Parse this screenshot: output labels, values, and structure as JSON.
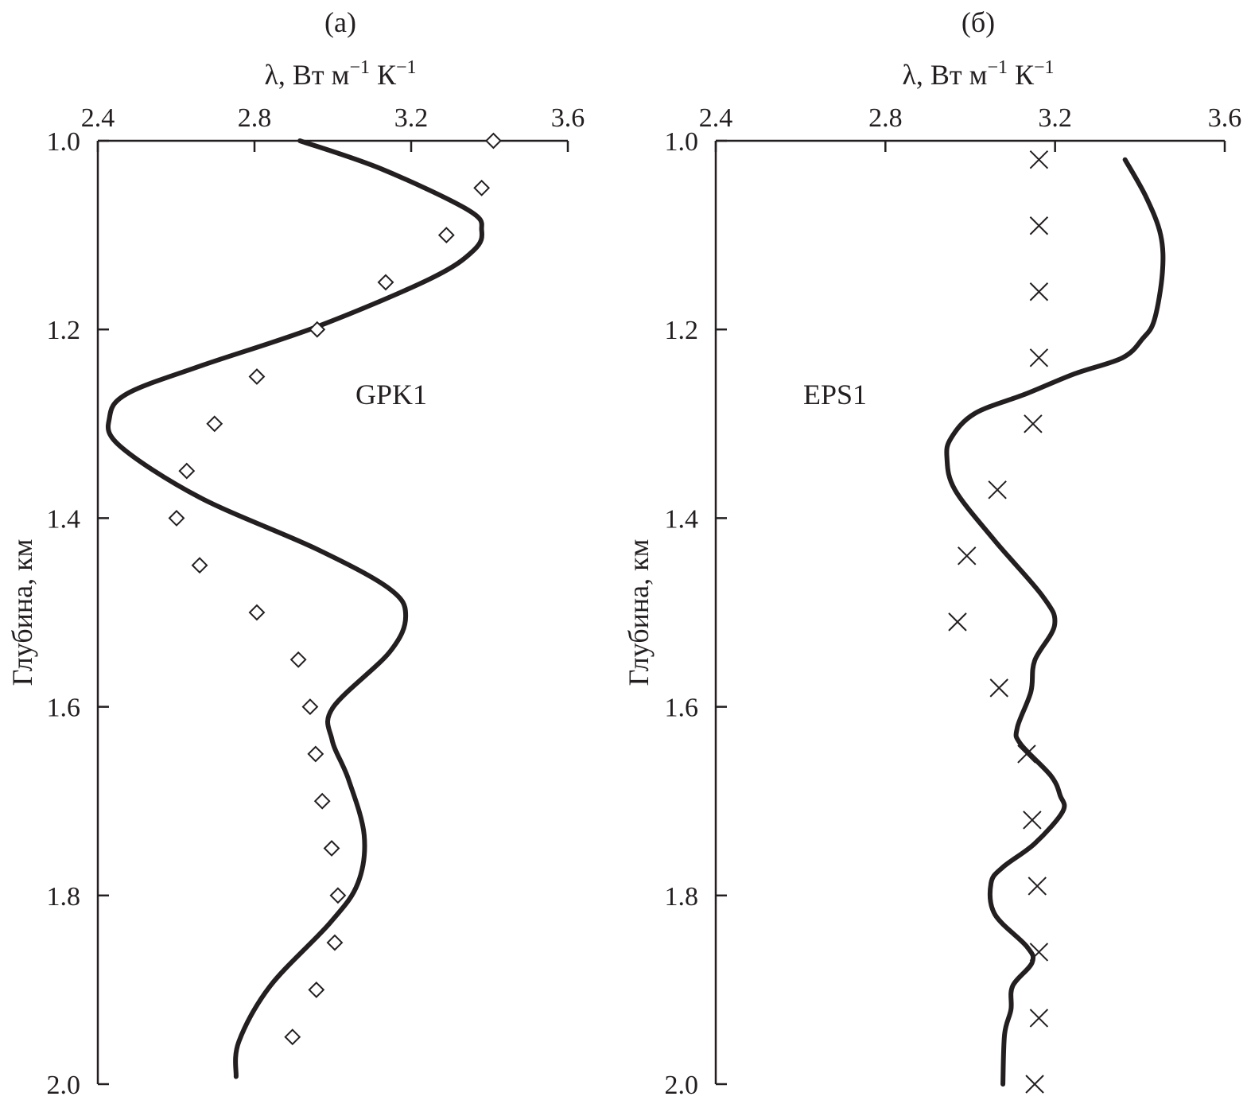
{
  "chart_data": [
    {
      "type": "line",
      "panel_label": "(a)",
      "xlabel": "λ, Вт м⁻¹ К⁻¹",
      "xlabel_parts": {
        "main": "λ, Вт м",
        "sup1": "−1",
        "mid": " К",
        "sup2": "−1"
      },
      "ylabel": "Глубина, км",
      "xlim": [
        2.4,
        3.6
      ],
      "ylim": [
        1.0,
        2.0
      ],
      "y_inverted": true,
      "x_axis_position": "top",
      "xticks": [
        "2.4",
        "2.8",
        "3.2",
        "3.6"
      ],
      "yticks": [
        "1.0",
        "1.2",
        "1.4",
        "1.6",
        "1.8",
        "2.0"
      ],
      "grid": false,
      "annotation": "GPK1",
      "color": "#231f20",
      "series": [
        {
          "style": "solid-line",
          "points": [
            [
              2.916,
              1.0
            ],
            [
              3.125,
              1.03
            ],
            [
              3.348,
              1.074
            ],
            [
              3.38,
              1.095
            ],
            [
              3.36,
              1.116
            ],
            [
              3.25,
              1.146
            ],
            [
              2.96,
              1.197
            ],
            [
              2.66,
              1.239
            ],
            [
              2.475,
              1.268
            ],
            [
              2.43,
              1.293
            ],
            [
              2.455,
              1.323
            ],
            [
              2.66,
              1.378
            ],
            [
              2.96,
              1.433
            ],
            [
              3.145,
              1.475
            ],
            [
              3.186,
              1.504
            ],
            [
              3.145,
              1.542
            ],
            [
              3.0,
              1.601
            ],
            [
              2.998,
              1.635
            ],
            [
              3.04,
              1.677
            ],
            [
              3.08,
              1.736
            ],
            [
              3.064,
              1.787
            ],
            [
              2.993,
              1.829
            ],
            [
              2.84,
              1.896
            ],
            [
              2.76,
              1.955
            ],
            [
              2.753,
              1.992
            ]
          ]
        },
        {
          "style": "diamond-markers",
          "points": [
            [
              3.41,
              1.0
            ],
            [
              3.38,
              1.05
            ],
            [
              3.29,
              1.1
            ],
            [
              3.135,
              1.15
            ],
            [
              2.96,
              1.2
            ],
            [
              2.806,
              1.25
            ],
            [
              2.698,
              1.3
            ],
            [
              2.627,
              1.35
            ],
            [
              2.601,
              1.4
            ],
            [
              2.66,
              1.45
            ],
            [
              2.806,
              1.5
            ],
            [
              2.912,
              1.55
            ],
            [
              2.942,
              1.6
            ],
            [
              2.956,
              1.65
            ],
            [
              2.973,
              1.7
            ],
            [
              2.997,
              1.75
            ],
            [
              3.013,
              1.8
            ],
            [
              3.005,
              1.85
            ],
            [
              2.958,
              1.9
            ],
            [
              2.897,
              1.95
            ]
          ]
        }
      ]
    },
    {
      "type": "line",
      "panel_label": "(б)",
      "xlabel": "λ, Вт м⁻¹ К⁻¹",
      "xlabel_parts": {
        "main": "λ, Вт м",
        "sup1": "−1",
        "mid": " К",
        "sup2": "−1"
      },
      "ylabel": "Глубина, км",
      "xlim": [
        2.4,
        3.6
      ],
      "ylim": [
        1.0,
        2.0
      ],
      "y_inverted": true,
      "x_axis_position": "top",
      "xticks": [
        "2.4",
        "2.8",
        "3.2",
        "3.6"
      ],
      "yticks": [
        "1.0",
        "1.2",
        "1.4",
        "1.6",
        "1.8",
        "2.0"
      ],
      "grid": false,
      "annotation": "EPS1",
      "color": "#231f20",
      "series": [
        {
          "style": "solid-line",
          "points": [
            [
              3.365,
              1.02
            ],
            [
              3.415,
              1.06
            ],
            [
              3.449,
              1.1
            ],
            [
              3.453,
              1.14
            ],
            [
              3.434,
              1.19
            ],
            [
              3.406,
              1.21
            ],
            [
              3.359,
              1.23
            ],
            [
              3.246,
              1.247
            ],
            [
              3.133,
              1.268
            ],
            [
              3.011,
              1.289
            ],
            [
              2.955,
              1.315
            ],
            [
              2.945,
              1.336
            ],
            [
              2.964,
              1.37
            ],
            [
              3.058,
              1.424
            ],
            [
              3.171,
              1.483
            ],
            [
              3.199,
              1.513
            ],
            [
              3.152,
              1.551
            ],
            [
              3.143,
              1.584
            ],
            [
              3.111,
              1.622
            ],
            [
              3.118,
              1.639
            ],
            [
              3.19,
              1.673
            ],
            [
              3.212,
              1.694
            ],
            [
              3.218,
              1.711
            ],
            [
              3.152,
              1.745
            ],
            [
              3.077,
              1.77
            ],
            [
              3.049,
              1.787
            ],
            [
              3.058,
              1.82
            ],
            [
              3.133,
              1.854
            ],
            [
              3.146,
              1.871
            ],
            [
              3.1,
              1.896
            ],
            [
              3.096,
              1.921
            ],
            [
              3.081,
              1.947
            ],
            [
              3.077,
              2.0
            ]
          ]
        },
        {
          "style": "cross-markers",
          "points": [
            [
              3.162,
              1.02
            ],
            [
              3.162,
              1.09
            ],
            [
              3.162,
              1.16
            ],
            [
              3.162,
              1.23
            ],
            [
              3.148,
              1.3
            ],
            [
              3.064,
              1.37
            ],
            [
              2.992,
              1.44
            ],
            [
              2.97,
              1.51
            ],
            [
              3.068,
              1.58
            ],
            [
              3.133,
              1.65
            ],
            [
              3.146,
              1.72
            ],
            [
              3.158,
              1.79
            ],
            [
              3.162,
              1.86
            ],
            [
              3.162,
              1.93
            ],
            [
              3.152,
              2.0
            ]
          ]
        }
      ]
    }
  ]
}
